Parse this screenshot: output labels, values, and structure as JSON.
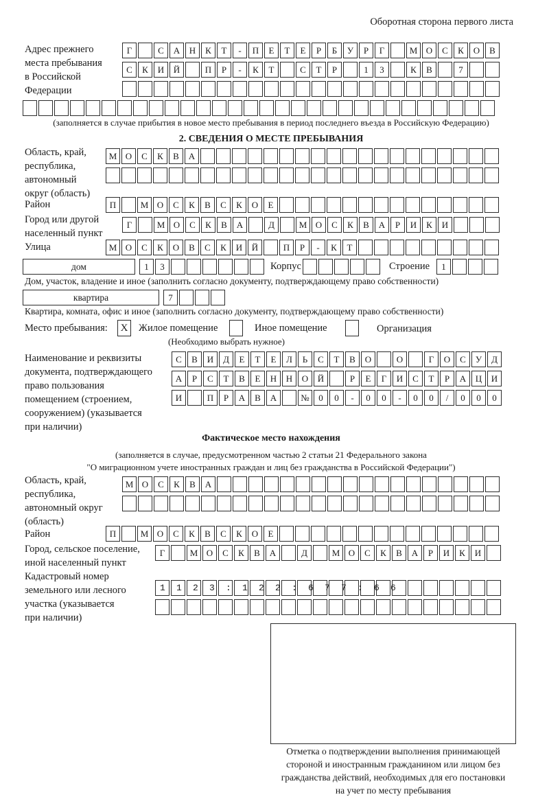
{
  "header": {
    "page_side": "Оборотная сторона первого листа"
  },
  "previous_address": {
    "label": [
      "Адрес прежнего",
      "места пребывания",
      "в Российской",
      "Федерации"
    ],
    "rows": [
      "Г САНКТ-ПЕТЕРБУРГ МОСКОВ",
      "СКИЙ ПР-КТ СТР 13 КВ 7",
      "",
      ""
    ],
    "note": "(заполняется в случае прибытия в новое место пребывания в период последнего въезда в Российскую Федерацию)"
  },
  "section2": {
    "title": "2. СВЕДЕНИЯ О МЕСТЕ ПРЕБЫВАНИЯ",
    "region_label": [
      "Область, край,",
      "республика,",
      "автономный",
      "округ (область)"
    ],
    "region_rows": [
      "МОСКВА",
      ""
    ],
    "district_label": "Район",
    "district": "П МОСКВСКОЕ",
    "city_label": [
      "Город или другой",
      "населенный пункт"
    ],
    "city": "Г МОСКВА Д МОСКВАРИКИ",
    "street_label": "Улица",
    "street": "МОСКОВСКИЙ ПР-КТ",
    "house_type": "дом",
    "house_number": "13",
    "korpus_label": "Корпус",
    "korpus": "",
    "building_label": "Строение",
    "building": "1",
    "house_note": "Дом, участок, владение и иное (заполнить согласно документу, подтверждающему право собственности)",
    "apartment_type": "квартира",
    "apartment_number": "7",
    "apartment_note": "Квартира, комната, офис и иное (заполнить согласно документу, подтверждающему право собственности)",
    "stay_place_label": "Место пребывания:",
    "stay_options": [
      {
        "label": "Жилое помещение",
        "mark": "X"
      },
      {
        "label": "Иное помещение",
        "mark": ""
      },
      {
        "label": "Организация",
        "mark": ""
      }
    ],
    "stay_note": "(Необходимо выбрать нужное)",
    "document_label": [
      "Наименование и реквизиты",
      "документа, подтверждающего",
      "право пользования",
      "помещением (строением,",
      "сооружением) (указывается",
      "при наличии)"
    ],
    "document_rows": [
      "СВИДЕТЕЛЬСТВО О ГОСУД",
      "АРСТВЕННОЙ РЕГИСТРАЦИ",
      "И ПРАВА №00-00-00/000"
    ]
  },
  "actual_location": {
    "title": "Фактическое место нахождения",
    "note": [
      "(заполняется в случае, предусмотренном частью 2 статьи 21 Федерального закона",
      "\"О миграционном учете иностранных граждан и лиц без гражданства в Российской Федерации\")"
    ],
    "region_label": [
      "Область, край,",
      "республика,",
      "автономный округ",
      "(область)"
    ],
    "region_rows": [
      "МОСКВА",
      ""
    ],
    "district_label": "Район",
    "district": "П МОСКВСКОЕ",
    "city_label": [
      "Город, сельское поселение,",
      "иной населенный пункт"
    ],
    "city": "Г МОСКВА Д МОСКВАРИКИ",
    "cadastral_label": [
      "Кадастровый номер",
      "земельного или лесного",
      "участка (указывается",
      "при наличии)"
    ],
    "cadastral_rows": [
      "1123:122:677:66",
      ""
    ]
  },
  "confirmation": {
    "caption": [
      "Отметка о подтверждении выполнения принимающей",
      "стороной и иностранным гражданином или лицом без",
      "гражданства действий, необходимых для его постановки",
      "на учет по месту пребывания"
    ]
  }
}
